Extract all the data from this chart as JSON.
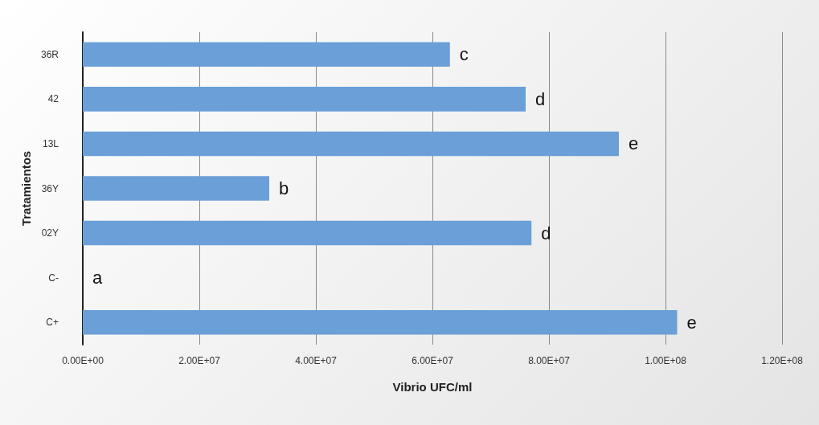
{
  "chart_data": {
    "type": "bar",
    "orientation": "horizontal",
    "xlabel": "Vibrio UFC/ml",
    "ylabel": "Tratamientos",
    "categories": [
      "36R",
      "42",
      "13L",
      "36Y",
      "02Y",
      "C-",
      "C+"
    ],
    "values": [
      63000000.0,
      76000000.0,
      92000000.0,
      32000000.0,
      77000000.0,
      0,
      102000000.0
    ],
    "value_labels": [
      "c",
      "d",
      "e",
      "b",
      "d",
      "a",
      "e"
    ],
    "color": "#6a9fd8",
    "xlim": [
      0,
      120000000.0
    ],
    "xticks": [
      {
        "value": 0,
        "label": "0.00E+00"
      },
      {
        "value": 20000000.0,
        "label": "2.00E+07"
      },
      {
        "value": 40000000.0,
        "label": "4.00E+07"
      },
      {
        "value": 60000000.0,
        "label": "6.00E+07"
      },
      {
        "value": 80000000.0,
        "label": "8.00E+07"
      },
      {
        "value": 100000000.0,
        "label": "1.00E+08"
      },
      {
        "value": 120000000.0,
        "label": "1.20E+08"
      }
    ],
    "grid": "x"
  }
}
